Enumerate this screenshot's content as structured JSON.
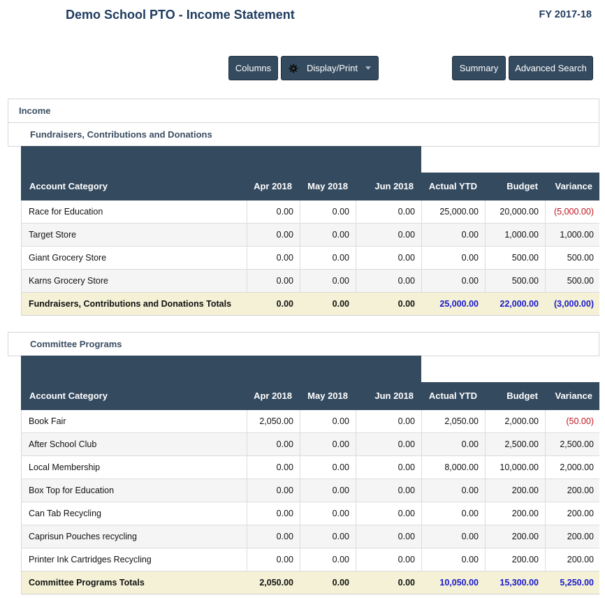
{
  "header": {
    "title": "Demo School PTO - Income Statement",
    "fiscal_year": "FY 2017-18"
  },
  "toolbar": {
    "columns": "Columns",
    "display_print": "Display/Print",
    "summary": "Summary",
    "advanced_search": "Advanced Search"
  },
  "income_label": "Income",
  "columns": {
    "account": "Account Category",
    "apr": "Apr 2018",
    "may": "May 2018",
    "jun": "Jun 2018",
    "ytd": "Actual YTD",
    "budget": "Budget",
    "variance": "Variance"
  },
  "fundraisers": {
    "title": "Fundraisers, Contributions and Donations",
    "rows": [
      {
        "name": "Race for Education",
        "apr": "0.00",
        "may": "0.00",
        "jun": "0.00",
        "ytd": "25,000.00",
        "budget": "20,000.00",
        "variance": "(5,000.00)",
        "negative": true
      },
      {
        "name": "Target Store",
        "apr": "0.00",
        "may": "0.00",
        "jun": "0.00",
        "ytd": "0.00",
        "budget": "1,000.00",
        "variance": "1,000.00",
        "negative": false
      },
      {
        "name": "Giant Grocery Store",
        "apr": "0.00",
        "may": "0.00",
        "jun": "0.00",
        "ytd": "0.00",
        "budget": "500.00",
        "variance": "500.00",
        "negative": false
      },
      {
        "name": "Karns Grocery Store",
        "apr": "0.00",
        "may": "0.00",
        "jun": "0.00",
        "ytd": "0.00",
        "budget": "500.00",
        "variance": "500.00",
        "negative": false
      }
    ],
    "totals": {
      "name": "Fundraisers, Contributions and Donations Totals",
      "apr": "0.00",
      "may": "0.00",
      "jun": "0.00",
      "ytd": "25,000.00",
      "budget": "22,000.00",
      "variance": "(3,000.00)"
    }
  },
  "committee": {
    "title": "Committee Programs",
    "rows": [
      {
        "name": "Book Fair",
        "apr": "2,050.00",
        "may": "0.00",
        "jun": "0.00",
        "ytd": "2,050.00",
        "budget": "2,000.00",
        "variance": "(50.00)",
        "negative": true
      },
      {
        "name": "After School Club",
        "apr": "0.00",
        "may": "0.00",
        "jun": "0.00",
        "ytd": "0.00",
        "budget": "2,500.00",
        "variance": "2,500.00",
        "negative": false
      },
      {
        "name": "Local Membership",
        "apr": "0.00",
        "may": "0.00",
        "jun": "0.00",
        "ytd": "8,000.00",
        "budget": "10,000.00",
        "variance": "2,000.00",
        "negative": false
      },
      {
        "name": "Box Top for Education",
        "apr": "0.00",
        "may": "0.00",
        "jun": "0.00",
        "ytd": "0.00",
        "budget": "200.00",
        "variance": "200.00",
        "negative": false
      },
      {
        "name": "Can Tab Recycling",
        "apr": "0.00",
        "may": "0.00",
        "jun": "0.00",
        "ytd": "0.00",
        "budget": "200.00",
        "variance": "200.00",
        "negative": false
      },
      {
        "name": "Caprisun Pouches recycling",
        "apr": "0.00",
        "may": "0.00",
        "jun": "0.00",
        "ytd": "0.00",
        "budget": "200.00",
        "variance": "200.00",
        "negative": false
      },
      {
        "name": "Printer Ink Cartridges Recycling",
        "apr": "0.00",
        "may": "0.00",
        "jun": "0.00",
        "ytd": "0.00",
        "budget": "200.00",
        "variance": "200.00",
        "negative": false
      }
    ],
    "totals": {
      "name": "Committee Programs Totals",
      "apr": "2,050.00",
      "may": "0.00",
      "jun": "0.00",
      "ytd": "10,050.00",
      "budget": "15,300.00",
      "variance": "5,250.00"
    }
  },
  "colors": {
    "header_bg": "#344a5f",
    "title": "#1f3b5f",
    "negative": "#c0141c",
    "total_bg": "#f4f1d6",
    "total_value": "#1a1acc"
  },
  "icons": {
    "display_print": "gear-icon",
    "dropdown": "caret-down-icon"
  }
}
